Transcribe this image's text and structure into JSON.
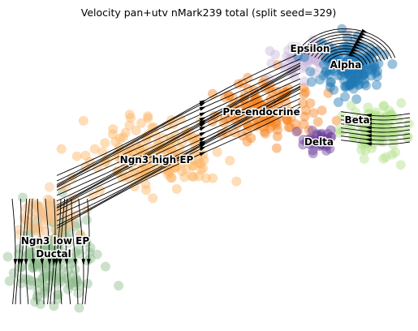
{
  "chart_data": {
    "type": "scatter",
    "title": "Velocity pan+utv nMark239 total (split seed=329)",
    "xlabel": "",
    "ylabel": "",
    "axes_visible": false,
    "grid": false,
    "legend": "on data",
    "clusters": [
      {
        "name": "Ductal",
        "color": "#8fbc8f"
      },
      {
        "name": "Ngn3 low EP",
        "color": "#f4c08a"
      },
      {
        "name": "Ngn3 high EP",
        "color": "#fdb462"
      },
      {
        "name": "Pre-endocrine",
        "color": "#f7821e"
      },
      {
        "name": "Epsilon",
        "color": "#c9b8dc"
      },
      {
        "name": "Alpha",
        "color": "#1f77b4"
      },
      {
        "name": "Beta",
        "color": "#b2df8a"
      },
      {
        "name": "Delta",
        "color": "#6a3d9a"
      }
    ],
    "overlay": "velocity streamlines with arrows"
  }
}
